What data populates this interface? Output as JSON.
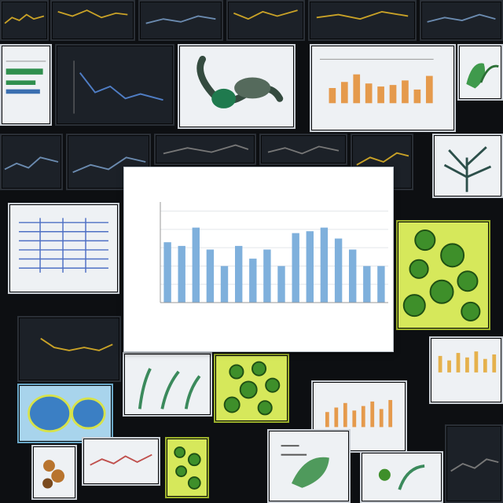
{
  "thumbnails": [
    {
      "id": "t1",
      "style": "dark",
      "icon": "line-chart-icon"
    },
    {
      "id": "t2",
      "style": "dark",
      "icon": "line-chart-icon"
    },
    {
      "id": "t3",
      "style": "dark",
      "icon": "line-chart-icon"
    },
    {
      "id": "t4",
      "style": "dark",
      "icon": "line-chart-icon"
    },
    {
      "id": "t5",
      "style": "dark",
      "icon": "line-chart-icon"
    },
    {
      "id": "t6",
      "style": "dark",
      "icon": "line-chart-icon"
    },
    {
      "id": "t7",
      "style": "light",
      "icon": "sketch-chart-icon"
    },
    {
      "id": "t8",
      "style": "dark",
      "icon": "line-chart-icon"
    },
    {
      "id": "t9",
      "style": "light",
      "icon": "bird-sculpture-icon"
    },
    {
      "id": "t10",
      "style": "light",
      "icon": "orange-bar-chart-icon"
    },
    {
      "id": "t11",
      "style": "light",
      "icon": "leaf-sketch-icon"
    },
    {
      "id": "t12",
      "style": "dark",
      "icon": "line-chart-icon"
    },
    {
      "id": "t13",
      "style": "dark",
      "icon": "line-chart-icon"
    },
    {
      "id": "t14",
      "style": "dark",
      "icon": "line-chart-icon"
    },
    {
      "id": "t15",
      "style": "light",
      "icon": "tree-sketch-icon"
    },
    {
      "id": "t16",
      "style": "light",
      "icon": "blue-table-sketch-icon"
    },
    {
      "id": "t17",
      "style": "lime",
      "icon": "green-cells-icon"
    },
    {
      "id": "t18",
      "style": "dark",
      "icon": "line-chart-icon"
    },
    {
      "id": "t19",
      "style": "light",
      "icon": "plant-sketch-icon"
    },
    {
      "id": "t20",
      "style": "lime",
      "icon": "green-cells-icon"
    },
    {
      "id": "t21",
      "style": "light",
      "icon": "orange-bar-chart-icon"
    },
    {
      "id": "t22",
      "style": "light",
      "icon": "orange-bar-chart-icon"
    },
    {
      "id": "t23",
      "style": "blue",
      "icon": "cell-diagram-icon"
    },
    {
      "id": "t24",
      "style": "light",
      "icon": "plant-sketch-icon"
    },
    {
      "id": "t25",
      "style": "light",
      "icon": "red-line-chart-icon"
    },
    {
      "id": "t26",
      "style": "lime",
      "icon": "green-cells-icon"
    },
    {
      "id": "t27",
      "style": "light",
      "icon": "leaf-sketch-icon"
    },
    {
      "id": "t28",
      "style": "light",
      "icon": "plant-sketch-icon"
    }
  ],
  "chart_data": {
    "type": "bar",
    "title": "",
    "xlabel": "",
    "ylabel": "",
    "ylim": [
      0,
      55
    ],
    "grid": true,
    "categories": [
      "",
      "",
      "",
      "",
      "",
      "",
      "",
      "",
      "",
      "",
      "",
      "",
      "",
      "",
      "",
      ""
    ],
    "values": [
      33,
      31,
      41,
      29,
      20,
      31,
      24,
      29,
      20,
      38,
      39,
      41,
      35,
      29,
      20,
      20
    ],
    "bar_color": "#7fb0dc"
  }
}
